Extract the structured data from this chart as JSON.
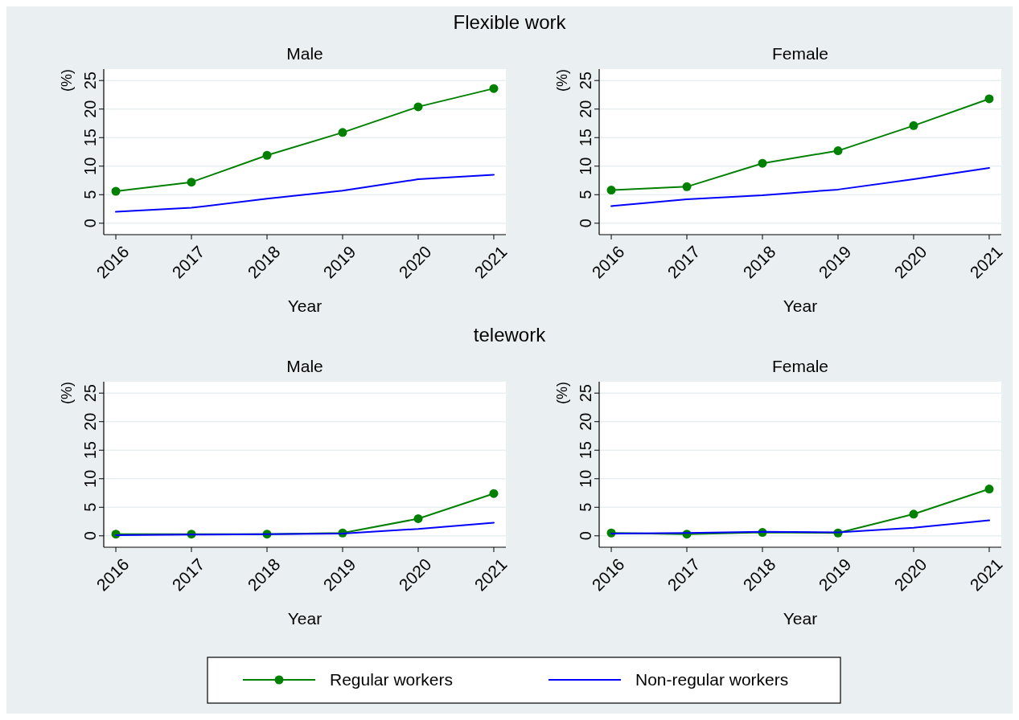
{
  "chart_data": [
    {
      "type": "line",
      "title": "Male",
      "annotations": [
        "Flexible work"
      ],
      "xlabel": "Year",
      "ylabel": "(%)",
      "x": [
        2016,
        2017,
        2018,
        2019,
        2020,
        2021
      ],
      "xlim": [
        2015.84,
        2021.16
      ],
      "xticks": [
        2016,
        2017,
        2018,
        2019,
        2020,
        2021
      ],
      "ylim": [
        -2,
        27
      ],
      "yticks": [
        0,
        5,
        10,
        15,
        20,
        25
      ],
      "grid": "y",
      "legend": false,
      "series": [
        {
          "color": "#008000",
          "marker": "circle",
          "values": [
            5.6,
            7.2,
            11.9,
            15.9,
            20.4,
            23.6
          ]
        },
        {
          "color": "#0000ff",
          "marker": "none",
          "values": [
            2.0,
            2.7,
            4.3,
            5.7,
            7.7,
            8.5
          ]
        }
      ]
    },
    {
      "type": "line",
      "title": "Female",
      "xlabel": "Year",
      "ylabel": "(%)",
      "x": [
        2016,
        2017,
        2018,
        2019,
        2020,
        2021
      ],
      "xlim": [
        2015.84,
        2021.16
      ],
      "xticks": [
        2016,
        2017,
        2018,
        2019,
        2020,
        2021
      ],
      "ylim": [
        -2,
        27
      ],
      "yticks": [
        0,
        5,
        10,
        15,
        20,
        25
      ],
      "grid": "y",
      "legend": false,
      "series": [
        {
          "color": "#008000",
          "marker": "circle",
          "values": [
            5.8,
            6.4,
            10.5,
            12.7,
            17.1,
            21.8
          ]
        },
        {
          "color": "#0000ff",
          "marker": "none",
          "values": [
            3.0,
            4.2,
            4.9,
            5.9,
            7.7,
            9.7
          ]
        }
      ]
    },
    {
      "type": "line",
      "title": "Male",
      "annotations": [
        "telework"
      ],
      "xlabel": "Year",
      "ylabel": "(%)",
      "x": [
        2016,
        2017,
        2018,
        2019,
        2020,
        2021
      ],
      "xlim": [
        2015.84,
        2021.16
      ],
      "xticks": [
        2016,
        2017,
        2018,
        2019,
        2020,
        2021
      ],
      "ylim": [
        -2,
        27
      ],
      "yticks": [
        0,
        5,
        10,
        15,
        20,
        25
      ],
      "grid": "y",
      "legend": false,
      "series": [
        {
          "color": "#008000",
          "marker": "circle",
          "values": [
            0.3,
            0.3,
            0.3,
            0.5,
            3.0,
            7.4
          ]
        },
        {
          "color": "#0000ff",
          "marker": "none",
          "values": [
            0.1,
            0.2,
            0.3,
            0.4,
            1.2,
            2.3
          ]
        }
      ]
    },
    {
      "type": "line",
      "title": "Female",
      "xlabel": "Year",
      "ylabel": "(%)",
      "x": [
        2016,
        2017,
        2018,
        2019,
        2020,
        2021
      ],
      "xlim": [
        2015.84,
        2021.16
      ],
      "xticks": [
        2016,
        2017,
        2018,
        2019,
        2020,
        2021
      ],
      "ylim": [
        -2,
        27
      ],
      "yticks": [
        0,
        5,
        10,
        15,
        20,
        25
      ],
      "grid": "y",
      "legend": "bottom",
      "series": [
        {
          "name": "Regular workers",
          "color": "#008000",
          "marker": "circle",
          "values": [
            0.5,
            0.3,
            0.6,
            0.5,
            3.8,
            8.2
          ]
        },
        {
          "name": "Non-regular workers",
          "color": "#0000ff",
          "marker": "none",
          "values": [
            0.4,
            0.5,
            0.7,
            0.6,
            1.4,
            2.7
          ]
        }
      ]
    }
  ]
}
